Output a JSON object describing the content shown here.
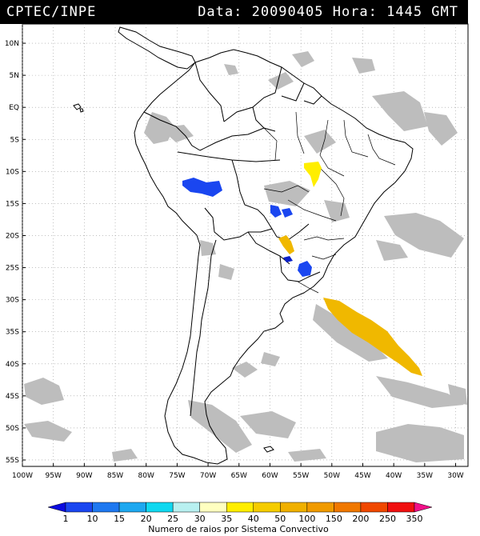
{
  "header": {
    "source": "CPTEC/INPE",
    "datetime": "Data: 20090405 Hora: 1445 GMT"
  },
  "map": {
    "projection": "lat-lon",
    "lon_range": [
      -100,
      -28
    ],
    "lat_range": [
      -56,
      13
    ],
    "grid": "dotted",
    "lat_ticks": [
      "10N",
      "5N",
      "EQ",
      "5S",
      "10S",
      "15S",
      "20S",
      "25S",
      "30S",
      "35S",
      "40S",
      "45S",
      "50S",
      "55S"
    ],
    "lon_ticks": [
      "100W",
      "95W",
      "90W",
      "85W",
      "80W",
      "75W",
      "70W",
      "65W",
      "60W",
      "55W",
      "50W",
      "45W",
      "40W",
      "35W",
      "30W"
    ],
    "cloud_color": "#bdbdbd",
    "lightning_systems": [
      {
        "lon": -71.0,
        "lat": -12.5,
        "count_class": "10-15",
        "color": "#1a46f0"
      },
      {
        "lon": -57.5,
        "lat": -16.0,
        "count_class": "10-15",
        "color": "#1a46f0"
      },
      {
        "lon": -51.0,
        "lat": -10.5,
        "count_class": "35-40",
        "color": "#ffee00"
      },
      {
        "lon": -55.0,
        "lat": -21.5,
        "count_class": "50-100",
        "color": "#f0b800"
      },
      {
        "lon": -55.0,
        "lat": -25.0,
        "count_class": "1-10",
        "color": "#0b20c8"
      },
      {
        "lon": -53.0,
        "lat": -25.5,
        "count_class": "10-15",
        "color": "#1a46f0"
      },
      {
        "lon": -41.0,
        "lat": -35.0,
        "count_class": "50-100",
        "color": "#f0b800"
      }
    ]
  },
  "legend": {
    "title": "Numero de raios por Sistema Convectivo",
    "labels": [
      "1",
      "10",
      "15",
      "20",
      "25",
      "30",
      "35",
      "40",
      "50",
      "100",
      "150",
      "200",
      "250",
      "350"
    ],
    "colors": [
      "#0b0be0",
      "#1a46f0",
      "#1e78f0",
      "#1ea8f0",
      "#10d8f0",
      "#b8f0f0",
      "#ffffc0",
      "#ffee00",
      "#f5cc00",
      "#f0b000",
      "#f09a00",
      "#f07800",
      "#f04800",
      "#f01010",
      "#f01088"
    ]
  }
}
